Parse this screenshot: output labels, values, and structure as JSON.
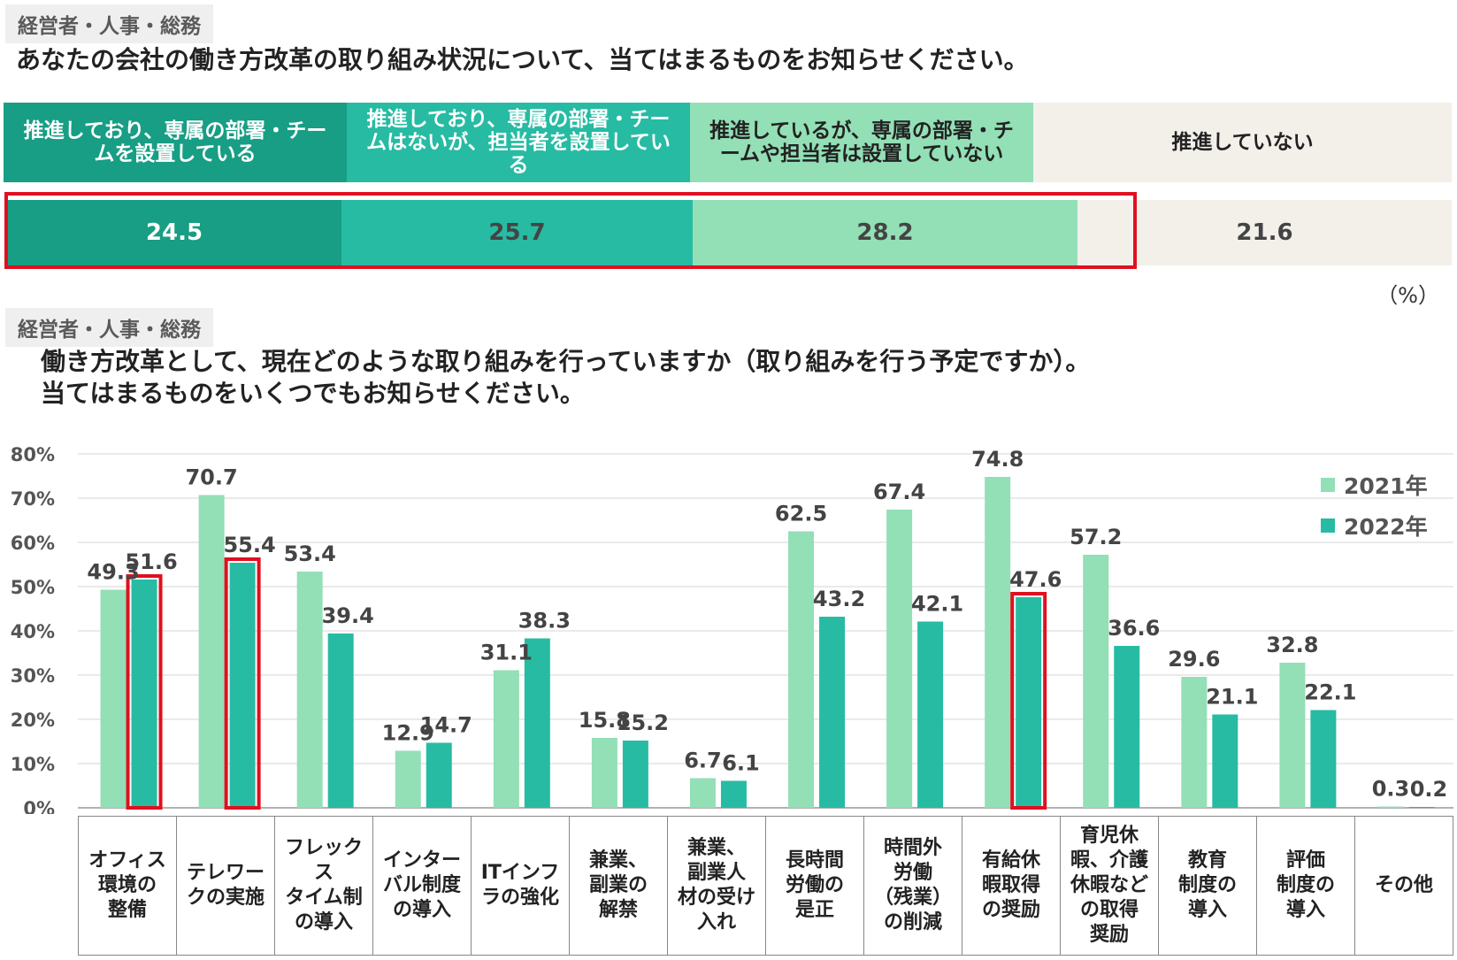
{
  "section1": {
    "tag": "経営者・人事・総務",
    "question": "あなたの会社の働き方改革の取り組み状況について、当てはまるものをお知らせください。",
    "headers": [
      "推進しており、専属の部署・チームを設置している",
      "推進しており、専属の部署・チームはないが、担当者を設置している",
      "推進しているが、専属の部署・チームや担当者は設置していない",
      "推進していない"
    ],
    "values": [
      "24.5",
      "25.7",
      "28.2",
      "21.6"
    ],
    "unit": "（%）"
  },
  "section2": {
    "tag": "経営者・人事・総務",
    "question_line1": "働き方改革として、現在どのような取り組みを行っていますか（取り組みを行う予定ですか）。",
    "question_line2": "当てはまるものをいくつでもお知らせください。"
  },
  "colors": {
    "dark_teal": "#179e84",
    "mid_teal": "#27bba3",
    "light_green": "#93dfb6",
    "beige": "#f3f0ea",
    "red": "#e0101f"
  },
  "chart_data": {
    "type": "bar",
    "categories": [
      "オフィス\n環境の\n整備",
      "テレワー\nクの実施",
      "フレックス\nタイム制\nの導入",
      "インター\nバル制度\nの導入",
      "ITインフ\nラの強化",
      "兼業、\n副業の\n解禁",
      "兼業、\n副業人\n材の受け\n入れ",
      "長時間\n労働の\n是正",
      "時間外\n労働\n（残業）\nの削減",
      "有給休\n暇取得\nの奨励",
      "育児休\n暇、介護\n休暇など\nの取得\n奨励",
      "教育\n制度の\n導入",
      "評価\n制度の\n導入",
      "その他"
    ],
    "series": [
      {
        "name": "2021年",
        "values": [
          49.3,
          70.7,
          53.4,
          12.9,
          31.1,
          15.8,
          6.7,
          62.5,
          67.4,
          74.8,
          57.2,
          29.6,
          32.8,
          0.3
        ]
      },
      {
        "name": "2022年",
        "values": [
          51.6,
          55.4,
          39.4,
          14.7,
          38.3,
          15.2,
          6.1,
          43.2,
          42.1,
          47.6,
          36.6,
          21.1,
          22.1,
          0.2
        ]
      }
    ],
    "highlighted_2022_indices": [
      0,
      1,
      9
    ],
    "ylim": [
      0,
      80
    ],
    "yticks": [
      "0%",
      "10%",
      "20%",
      "30%",
      "40%",
      "50%",
      "60%",
      "70%",
      "80%"
    ],
    "grid": true,
    "legend": "top-right"
  }
}
